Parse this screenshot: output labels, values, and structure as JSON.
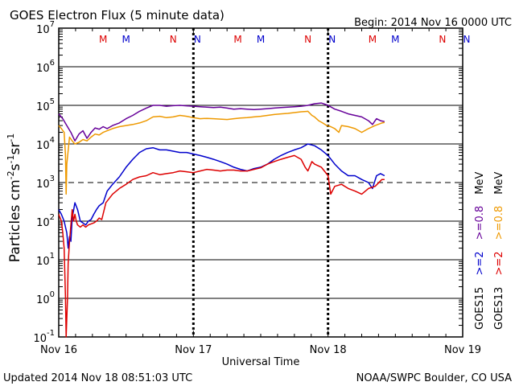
{
  "header": {
    "title": "GOES Electron Flux (5 minute data)",
    "begin": "Begin: 2014 Nov 16 0000 UTC"
  },
  "footer": {
    "updated": "Updated 2014 Nov 18 08:51:03 UTC",
    "credit": "NOAA/SWPC Boulder, CO USA"
  },
  "axes": {
    "ylabel_main": "Particles cm",
    "ylabel_exp1": "-2",
    "ylabel_s": "s",
    "ylabel_exp2": "-1",
    "ylabel_sr": "sr",
    "ylabel_exp3": "-1",
    "xlabel": "Universal Time"
  },
  "ytick_labels": [
    {
      "base": "10",
      "exp": "7"
    },
    {
      "base": "10",
      "exp": "6"
    },
    {
      "base": "10",
      "exp": "5"
    },
    {
      "base": "10",
      "exp": "4"
    },
    {
      "base": "10",
      "exp": "3"
    },
    {
      "base": "10",
      "exp": "2"
    },
    {
      "base": "10",
      "exp": "1"
    },
    {
      "base": "10",
      "exp": "0"
    },
    {
      "base": "10",
      "exp": "-1"
    }
  ],
  "xtick_labels": [
    "Nov 16",
    "Nov 17",
    "Nov 18",
    "Nov 19"
  ],
  "markers": [
    {
      "label": "M",
      "day": 0.33,
      "color": "#dd0000"
    },
    {
      "label": "M",
      "day": 0.5,
      "color": "#0000cc"
    },
    {
      "label": "N",
      "day": 0.85,
      "color": "#dd0000"
    },
    {
      "label": "N",
      "day": 1.03,
      "color": "#0000cc"
    },
    {
      "label": "M",
      "day": 1.33,
      "color": "#dd0000"
    },
    {
      "label": "M",
      "day": 1.5,
      "color": "#0000cc"
    },
    {
      "label": "N",
      "day": 1.85,
      "color": "#dd0000"
    },
    {
      "label": "N",
      "day": 2.03,
      "color": "#0000cc"
    },
    {
      "label": "M",
      "day": 2.33,
      "color": "#dd0000"
    },
    {
      "label": "M",
      "day": 2.5,
      "color": "#0000cc"
    },
    {
      "label": "N",
      "day": 2.85,
      "color": "#dd0000"
    },
    {
      "label": "N",
      "day": 3.03,
      "color": "#0000cc"
    }
  ],
  "legend": [
    {
      "sat": "GOES15",
      "items": [
        {
          "text": ">=2",
          "color": "#0000cc"
        },
        {
          "text": ">=0.8",
          "color": "#660099"
        },
        {
          "text": "MeV",
          "color": "#000000"
        }
      ]
    },
    {
      "sat": "GOES13",
      "items": [
        {
          "text": ">=2",
          "color": "#dd0000"
        },
        {
          "text": ">=0.8",
          "color": "#ee9900"
        },
        {
          "text": "MeV",
          "color": "#000000"
        }
      ]
    }
  ],
  "chart_data": {
    "type": "line",
    "title": "GOES Electron Flux (5 minute data)",
    "xlabel": "Universal Time",
    "ylabel": "Particles cm-2 s-1 sr-1",
    "x_unit": "days since 2014 Nov 16 0000 UTC",
    "xlim": [
      0,
      3
    ],
    "ylim": [
      0.1,
      10000000
    ],
    "yscale": "log",
    "threshold": 1000,
    "grid": true,
    "legend_position": "right",
    "series": [
      {
        "name": "GOES15 >=0.8 MeV",
        "color": "#660099",
        "points": [
          [
            0.0,
            60000
          ],
          [
            0.03,
            45000
          ],
          [
            0.06,
            30000
          ],
          [
            0.09,
            20000
          ],
          [
            0.12,
            12000
          ],
          [
            0.15,
            18000
          ],
          [
            0.18,
            22000
          ],
          [
            0.21,
            14000
          ],
          [
            0.24,
            20000
          ],
          [
            0.27,
            26000
          ],
          [
            0.3,
            24000
          ],
          [
            0.33,
            28000
          ],
          [
            0.36,
            25000
          ],
          [
            0.4,
            30000
          ],
          [
            0.45,
            35000
          ],
          [
            0.5,
            45000
          ],
          [
            0.55,
            55000
          ],
          [
            0.6,
            70000
          ],
          [
            0.65,
            85000
          ],
          [
            0.7,
            100000
          ],
          [
            0.75,
            100000
          ],
          [
            0.8,
            95000
          ],
          [
            0.85,
            98000
          ],
          [
            0.9,
            100000
          ],
          [
            0.95,
            97000
          ],
          [
            1.0,
            95000
          ],
          [
            1.05,
            92000
          ],
          [
            1.1,
            90000
          ],
          [
            1.15,
            88000
          ],
          [
            1.2,
            90000
          ],
          [
            1.25,
            85000
          ],
          [
            1.3,
            80000
          ],
          [
            1.35,
            82000
          ],
          [
            1.4,
            80000
          ],
          [
            1.45,
            78000
          ],
          [
            1.5,
            80000
          ],
          [
            1.55,
            82000
          ],
          [
            1.6,
            85000
          ],
          [
            1.65,
            88000
          ],
          [
            1.7,
            90000
          ],
          [
            1.75,
            92000
          ],
          [
            1.8,
            95000
          ],
          [
            1.85,
            100000
          ],
          [
            1.9,
            110000
          ],
          [
            1.95,
            115000
          ],
          [
            2.0,
            100000
          ],
          [
            2.05,
            80000
          ],
          [
            2.1,
            70000
          ],
          [
            2.15,
            60000
          ],
          [
            2.2,
            55000
          ],
          [
            2.25,
            50000
          ],
          [
            2.3,
            40000
          ],
          [
            2.33,
            32000
          ],
          [
            2.36,
            45000
          ],
          [
            2.39,
            40000
          ],
          [
            2.42,
            38000
          ]
        ]
      },
      {
        "name": "GOES13 >=0.8 MeV",
        "color": "#ee9900",
        "points": [
          [
            0.0,
            30000
          ],
          [
            0.02,
            25000
          ],
          [
            0.04,
            20000
          ],
          [
            0.05,
            5000
          ],
          [
            0.055,
            500
          ],
          [
            0.06,
            3000
          ],
          [
            0.08,
            15000
          ],
          [
            0.1,
            12000
          ],
          [
            0.12,
            10000
          ],
          [
            0.15,
            11000
          ],
          [
            0.18,
            13000
          ],
          [
            0.21,
            12000
          ],
          [
            0.24,
            15000
          ],
          [
            0.27,
            18000
          ],
          [
            0.3,
            17000
          ],
          [
            0.33,
            20000
          ],
          [
            0.36,
            22000
          ],
          [
            0.4,
            25000
          ],
          [
            0.45,
            28000
          ],
          [
            0.5,
            30000
          ],
          [
            0.55,
            32000
          ],
          [
            0.6,
            35000
          ],
          [
            0.65,
            40000
          ],
          [
            0.7,
            50000
          ],
          [
            0.75,
            52000
          ],
          [
            0.8,
            48000
          ],
          [
            0.85,
            50000
          ],
          [
            0.9,
            55000
          ],
          [
            0.95,
            52000
          ],
          [
            1.0,
            48000
          ],
          [
            1.05,
            45000
          ],
          [
            1.1,
            46000
          ],
          [
            1.15,
            45000
          ],
          [
            1.2,
            44000
          ],
          [
            1.25,
            43000
          ],
          [
            1.3,
            45000
          ],
          [
            1.35,
            47000
          ],
          [
            1.4,
            48000
          ],
          [
            1.45,
            50000
          ],
          [
            1.5,
            52000
          ],
          [
            1.55,
            55000
          ],
          [
            1.6,
            58000
          ],
          [
            1.65,
            60000
          ],
          [
            1.7,
            62000
          ],
          [
            1.75,
            65000
          ],
          [
            1.8,
            68000
          ],
          [
            1.85,
            70000
          ],
          [
            1.88,
            55000
          ],
          [
            1.9,
            50000
          ],
          [
            1.93,
            40000
          ],
          [
            1.96,
            35000
          ],
          [
            1.99,
            30000
          ],
          [
            2.02,
            28000
          ],
          [
            2.05,
            25000
          ],
          [
            2.08,
            20000
          ],
          [
            2.1,
            30000
          ],
          [
            2.15,
            28000
          ],
          [
            2.2,
            25000
          ],
          [
            2.25,
            20000
          ],
          [
            2.3,
            25000
          ],
          [
            2.35,
            30000
          ],
          [
            2.4,
            35000
          ],
          [
            2.42,
            36000
          ]
        ]
      },
      {
        "name": "GOES15 >=2 MeV",
        "color": "#0000cc",
        "points": [
          [
            0.0,
            200
          ],
          [
            0.02,
            150
          ],
          [
            0.04,
            100
          ],
          [
            0.06,
            50
          ],
          [
            0.07,
            20
          ],
          [
            0.08,
            40
          ],
          [
            0.09,
            30
          ],
          [
            0.1,
            120
          ],
          [
            0.12,
            300
          ],
          [
            0.14,
            200
          ],
          [
            0.16,
            100
          ],
          [
            0.18,
            90
          ],
          [
            0.2,
            80
          ],
          [
            0.22,
            100
          ],
          [
            0.24,
            110
          ],
          [
            0.26,
            150
          ],
          [
            0.28,
            200
          ],
          [
            0.3,
            250
          ],
          [
            0.33,
            300
          ],
          [
            0.36,
            600
          ],
          [
            0.4,
            900
          ],
          [
            0.45,
            1400
          ],
          [
            0.5,
            2500
          ],
          [
            0.55,
            4000
          ],
          [
            0.6,
            6000
          ],
          [
            0.65,
            7500
          ],
          [
            0.7,
            8000
          ],
          [
            0.75,
            7000
          ],
          [
            0.8,
            7000
          ],
          [
            0.85,
            6500
          ],
          [
            0.9,
            6000
          ],
          [
            0.95,
            6000
          ],
          [
            1.0,
            5500
          ],
          [
            1.05,
            5000
          ],
          [
            1.1,
            4500
          ],
          [
            1.15,
            4000
          ],
          [
            1.2,
            3500
          ],
          [
            1.25,
            3000
          ],
          [
            1.3,
            2500
          ],
          [
            1.35,
            2200
          ],
          [
            1.4,
            2000
          ],
          [
            1.45,
            2300
          ],
          [
            1.5,
            2500
          ],
          [
            1.55,
            3000
          ],
          [
            1.6,
            4000
          ],
          [
            1.65,
            5000
          ],
          [
            1.7,
            6000
          ],
          [
            1.75,
            7000
          ],
          [
            1.8,
            8000
          ],
          [
            1.85,
            10000
          ],
          [
            1.9,
            9000
          ],
          [
            1.95,
            7000
          ],
          [
            2.0,
            5000
          ],
          [
            2.05,
            3000
          ],
          [
            2.1,
            2000
          ],
          [
            2.15,
            1500
          ],
          [
            2.2,
            1500
          ],
          [
            2.25,
            1200
          ],
          [
            2.3,
            1000
          ],
          [
            2.33,
            700
          ],
          [
            2.36,
            1500
          ],
          [
            2.39,
            1700
          ],
          [
            2.42,
            1500
          ]
        ]
      },
      {
        "name": "GOES13 >=2 MeV",
        "color": "#dd0000",
        "points": [
          [
            0.0,
            150
          ],
          [
            0.02,
            100
          ],
          [
            0.03,
            50
          ],
          [
            0.04,
            20
          ],
          [
            0.045,
            5
          ],
          [
            0.05,
            1
          ],
          [
            0.055,
            0.1
          ],
          [
            0.06,
            0.3
          ],
          [
            0.065,
            1
          ],
          [
            0.07,
            8
          ],
          [
            0.08,
            30
          ],
          [
            0.09,
            80
          ],
          [
            0.1,
            200
          ],
          [
            0.11,
            100
          ],
          [
            0.12,
            150
          ],
          [
            0.13,
            100
          ],
          [
            0.14,
            80
          ],
          [
            0.16,
            70
          ],
          [
            0.18,
            80
          ],
          [
            0.2,
            70
          ],
          [
            0.22,
            80
          ],
          [
            0.24,
            85
          ],
          [
            0.26,
            90
          ],
          [
            0.28,
            100
          ],
          [
            0.3,
            120
          ],
          [
            0.32,
            110
          ],
          [
            0.35,
            300
          ],
          [
            0.4,
            500
          ],
          [
            0.45,
            700
          ],
          [
            0.5,
            900
          ],
          [
            0.55,
            1200
          ],
          [
            0.6,
            1400
          ],
          [
            0.65,
            1500
          ],
          [
            0.7,
            1800
          ],
          [
            0.75,
            1600
          ],
          [
            0.8,
            1700
          ],
          [
            0.85,
            1800
          ],
          [
            0.9,
            2000
          ],
          [
            0.95,
            1900
          ],
          [
            1.0,
            1800
          ],
          [
            1.05,
            2000
          ],
          [
            1.1,
            2200
          ],
          [
            1.15,
            2100
          ],
          [
            1.2,
            2000
          ],
          [
            1.25,
            2100
          ],
          [
            1.3,
            2100
          ],
          [
            1.35,
            2000
          ],
          [
            1.4,
            2000
          ],
          [
            1.45,
            2200
          ],
          [
            1.5,
            2400
          ],
          [
            1.55,
            3000
          ],
          [
            1.6,
            3500
          ],
          [
            1.65,
            4000
          ],
          [
            1.7,
            4500
          ],
          [
            1.75,
            5000
          ],
          [
            1.8,
            4000
          ],
          [
            1.83,
            2500
          ],
          [
            1.85,
            2000
          ],
          [
            1.88,
            3500
          ],
          [
            1.9,
            3000
          ],
          [
            1.95,
            2500
          ],
          [
            2.0,
            1500
          ],
          [
            2.02,
            500
          ],
          [
            2.05,
            800
          ],
          [
            2.1,
            900
          ],
          [
            2.15,
            700
          ],
          [
            2.2,
            600
          ],
          [
            2.25,
            500
          ],
          [
            2.3,
            700
          ],
          [
            2.35,
            800
          ],
          [
            2.4,
            1200
          ],
          [
            2.42,
            1200
          ]
        ]
      }
    ]
  }
}
